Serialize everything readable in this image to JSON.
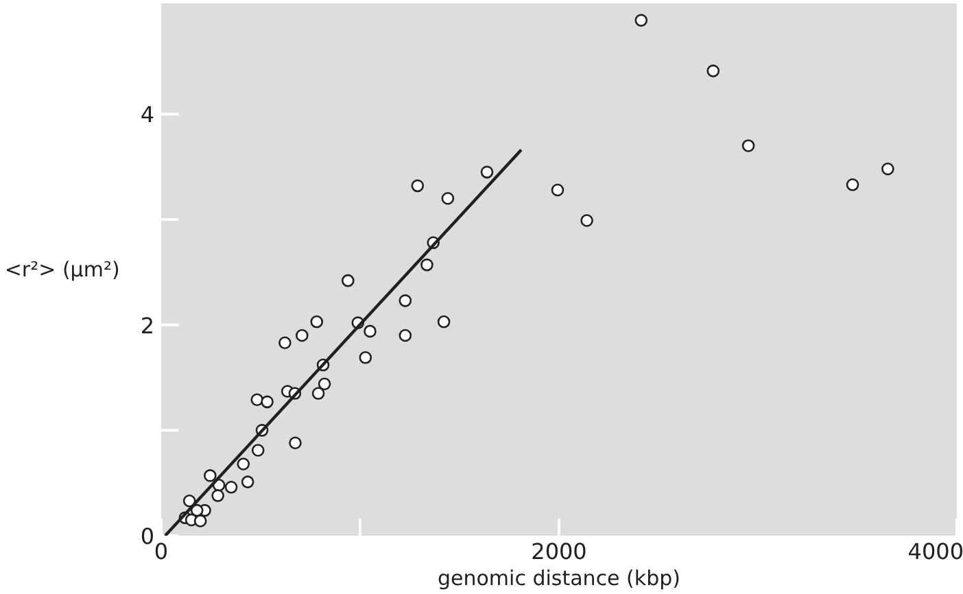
{
  "chart_data": {
    "type": "scatter",
    "xlabel": "genomic distance (kbp)",
    "ylabel": "<r²> (µm²)",
    "xlim": [
      0,
      4000
    ],
    "ylim": [
      0,
      5.05
    ],
    "xticks": [
      0,
      {
        "value": 1000,
        "label": null
      },
      2000,
      4000
    ],
    "yticks": [
      0,
      {
        "value": 1,
        "label": null
      },
      2,
      {
        "value": 3,
        "label": null
      },
      4
    ],
    "grid": false,
    "series": [
      {
        "type": "scatter",
        "marker": "circle",
        "color": "#ffffff",
        "x": [
          2413,
          2775,
          2952,
          3476,
          3653,
          1993,
          2140,
          1638,
          1289,
          1441,
          1368,
          1336,
          939,
          1227,
          1421,
          1227,
          989,
          1050,
          782,
          708,
          622,
          1027,
          814,
          821,
          790,
          635,
          672,
          482,
          533,
          507,
          674,
          487,
          413,
          246,
          290,
          435,
          352,
          285,
          142,
          219,
          180,
          120,
          152,
          197
        ],
        "values": [
          4.89,
          4.41,
          3.7,
          3.33,
          3.48,
          3.28,
          2.99,
          3.45,
          3.32,
          3.2,
          2.78,
          2.57,
          2.42,
          2.23,
          2.03,
          1.9,
          2.02,
          1.94,
          2.03,
          1.9,
          1.83,
          1.69,
          1.62,
          1.44,
          1.35,
          1.37,
          1.35,
          1.29,
          1.27,
          1.0,
          0.88,
          0.81,
          0.68,
          0.57,
          0.48,
          0.51,
          0.46,
          0.38,
          0.33,
          0.24,
          0.24,
          0.17,
          0.15,
          0.14
        ]
      },
      {
        "type": "line",
        "color": "#231f20",
        "x": [
          20,
          1810
        ],
        "values": [
          0,
          3.66
        ]
      }
    ]
  }
}
